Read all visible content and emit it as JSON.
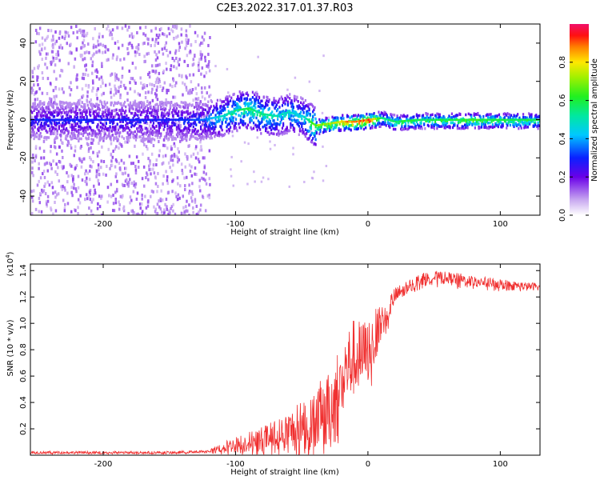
{
  "figure": {
    "title": "C2E3.2022.317.01.37.R03"
  },
  "chart_data": [
    {
      "type": "heatmap",
      "xlabel": "Height of straight line (km)",
      "ylabel": "Frequency (Hz)",
      "xlim": [
        -255,
        130
      ],
      "ylim": [
        -50,
        50
      ],
      "xticks": [
        -200,
        -100,
        0,
        100
      ],
      "yticks": [
        -40,
        -20,
        0,
        20,
        40
      ],
      "colorbar": {
        "label": "Normalized spectral amplitude",
        "range": [
          0,
          1
        ],
        "ticks": [
          0.0,
          0.2,
          0.4,
          0.6,
          0.8
        ],
        "tick_labels": [
          "0.0",
          "0.2",
          "0.4",
          "0.6",
          "0.8"
        ]
      },
      "trace": {
        "x": [
          -255,
          -200,
          -150,
          -125,
          -110,
          -100,
          -90,
          -80,
          -70,
          -60,
          -50,
          -40,
          -30,
          -20,
          -10,
          0,
          10,
          20,
          40,
          60,
          80,
          100,
          130
        ],
        "y": [
          0,
          0,
          0,
          0,
          2,
          5,
          6,
          3,
          2,
          4,
          2,
          -3,
          -2,
          -1,
          -1,
          0,
          1,
          -1,
          0,
          0,
          0,
          0,
          0
        ],
        "amplitude": [
          0.3,
          0.3,
          0.3,
          0.35,
          0.5,
          0.55,
          0.6,
          0.55,
          0.5,
          0.5,
          0.45,
          0.7,
          0.75,
          0.85,
          0.9,
          0.95,
          0.55,
          0.6,
          0.6,
          0.6,
          0.65,
          0.6,
          0.6
        ]
      }
    },
    {
      "type": "line",
      "xlabel": "Height of straight line (km)",
      "ylabel": "SNR (10 * v/v)",
      "multiplier": "(x10",
      "multiplier_exp": "4",
      "multiplier_close": ")",
      "xlim": [
        -255,
        130
      ],
      "ylim": [
        0,
        1.45
      ],
      "xticks": [
        -200,
        -100,
        0,
        100
      ],
      "yticks": [
        0.2,
        0.4,
        0.6,
        0.8,
        1.0,
        1.2,
        1.4
      ],
      "ytick_labels": [
        "0.2",
        "0.4",
        "0.6",
        "0.8",
        "1.0",
        "1.2",
        "1.4"
      ],
      "series": [
        {
          "color": "#f03030",
          "x": [
            -255,
            -200,
            -150,
            -120,
            -110,
            -100,
            -90,
            -80,
            -70,
            -60,
            -50,
            -40,
            -30,
            -25,
            -20,
            -15,
            -10,
            -5,
            0,
            5,
            10,
            15,
            20,
            30,
            40,
            50,
            60,
            70,
            80,
            90,
            100,
            110,
            120,
            130
          ],
          "y": [
            0.02,
            0.02,
            0.02,
            0.03,
            0.06,
            0.08,
            0.1,
            0.12,
            0.15,
            0.18,
            0.22,
            0.28,
            0.32,
            0.42,
            0.55,
            0.68,
            0.75,
            0.72,
            0.8,
            0.9,
            1.0,
            1.1,
            1.2,
            1.28,
            1.33,
            1.35,
            1.34,
            1.33,
            1.32,
            1.31,
            1.3,
            1.29,
            1.28,
            1.28
          ],
          "noise": [
            0.01,
            0.01,
            0.01,
            0.01,
            0.04,
            0.06,
            0.08,
            0.1,
            0.12,
            0.15,
            0.2,
            0.25,
            0.3,
            0.35,
            0.35,
            0.3,
            0.3,
            0.3,
            0.25,
            0.2,
            0.15,
            0.1,
            0.07,
            0.05,
            0.05,
            0.05,
            0.05,
            0.05,
            0.04,
            0.04,
            0.04,
            0.03,
            0.03,
            0.03
          ]
        }
      ]
    }
  ]
}
